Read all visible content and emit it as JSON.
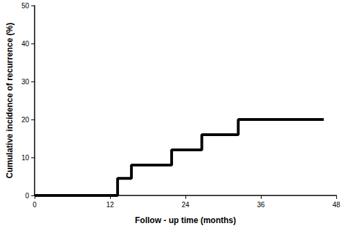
{
  "chart_data": {
    "type": "step",
    "x_label": "Follow - up time (months)",
    "y_label": "Cumulative incidence of recurrence (%)",
    "x": [
      0,
      13.2,
      15.4,
      21.8,
      26.6,
      32.4,
      46
    ],
    "values": [
      0,
      4.5,
      8,
      12,
      16,
      20,
      20
    ],
    "color": "#000000",
    "line_style": "solid",
    "xlim": [
      0,
      48
    ],
    "xticks": [
      0,
      12,
      24,
      36,
      48
    ],
    "ylim": [
      0,
      50
    ],
    "yticks": [
      0,
      10,
      20,
      30,
      40,
      50
    ],
    "grid": false
  }
}
